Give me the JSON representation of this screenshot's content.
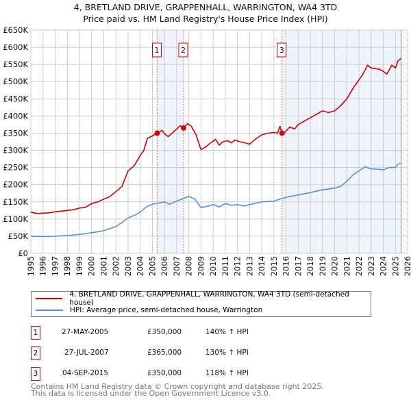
{
  "title_line1": "4, BRETLAND DRIVE, GRAPPENHALL, WARRINGTON, WA4 3TD",
  "title_line2": "Price paid vs. HM Land Registry's House Price Index (HPI)",
  "colors": {
    "property": "#cc0000",
    "hpi": "#5b8fd6",
    "shade": "#eef3fc",
    "grid": "#cccccc",
    "marker_border": "#cc0000"
  },
  "chart_data": {
    "type": "line",
    "title": "Price paid vs. HM Land Registry's House Price Index (HPI)",
    "xlim": [
      1995,
      2026
    ],
    "ylim": [
      0,
      650000
    ],
    "grid": true,
    "x_ticks": [
      "1995",
      "1996",
      "1997",
      "1998",
      "1999",
      "2000",
      "2001",
      "2002",
      "2003",
      "2004",
      "2005",
      "2006",
      "2007",
      "2008",
      "2009",
      "2010",
      "2011",
      "2012",
      "2013",
      "2014",
      "2015",
      "2016",
      "2017",
      "2018",
      "2019",
      "2020",
      "2021",
      "2022",
      "2023",
      "2024",
      "2025",
      "2026"
    ],
    "y_ticks": [
      {
        "v": 0,
        "label": "£0"
      },
      {
        "v": 50000,
        "label": "£50K"
      },
      {
        "v": 100000,
        "label": "£100K"
      },
      {
        "v": 150000,
        "label": "£150K"
      },
      {
        "v": 200000,
        "label": "£200K"
      },
      {
        "v": 250000,
        "label": "£250K"
      },
      {
        "v": 300000,
        "label": "£300K"
      },
      {
        "v": 350000,
        "label": "£350K"
      },
      {
        "v": 400000,
        "label": "£400K"
      },
      {
        "v": 450000,
        "label": "£450K"
      },
      {
        "v": 500000,
        "label": "£500K"
      },
      {
        "v": 550000,
        "label": "£550K"
      },
      {
        "v": 600000,
        "label": "£600K"
      },
      {
        "v": 650000,
        "label": "£650K"
      }
    ],
    "data_end": 2025.47,
    "shaded_ranges": [
      [
        2005.4,
        2007.57
      ],
      [
        2015.67,
        2025.47
      ]
    ],
    "series": [
      {
        "name": "4, BRETLAND DRIVE, GRAPPENHALL, WARRINGTON, WA4 3TD (semi-detached house)",
        "color": "#cc0000",
        "x": [
          1995,
          1995.5,
          1996,
          1996.5,
          1997,
          1997.5,
          1998,
          1998.5,
          1999,
          1999.5,
          2000,
          2000.5,
          2001,
          2001.5,
          2002,
          2002.5,
          2003,
          2003.5,
          2004,
          2004.3,
          2004.6,
          2005,
          2005.4,
          2005.8,
          2006,
          2006.3,
          2006.7,
          2007,
          2007.3,
          2007.57,
          2007.9,
          2008.2,
          2008.6,
          2009,
          2009.4,
          2009.8,
          2010.2,
          2010.5,
          2010.8,
          2011.2,
          2011.5,
          2011.8,
          2012.2,
          2012.6,
          2013,
          2013.5,
          2014,
          2014.5,
          2015,
          2015.3,
          2015.5,
          2015.67,
          2015.9,
          2016.3,
          2016.7,
          2017,
          2017.5,
          2018,
          2018.5,
          2019,
          2019.5,
          2020,
          2020.5,
          2021,
          2021.5,
          2022,
          2022.3,
          2022.7,
          2023,
          2023.3,
          2023.7,
          2024,
          2024.3,
          2024.7,
          2025,
          2025.2,
          2025.47
        ],
        "y": [
          120000,
          116000,
          117000,
          118000,
          121000,
          123000,
          125000,
          127000,
          132000,
          134000,
          145000,
          150000,
          158000,
          165000,
          180000,
          195000,
          240000,
          255000,
          285000,
          300000,
          335000,
          342000,
          350000,
          358000,
          348000,
          340000,
          352000,
          362000,
          372000,
          365000,
          378000,
          370000,
          345000,
          302000,
          310000,
          322000,
          332000,
          315000,
          325000,
          328000,
          322000,
          330000,
          325000,
          322000,
          318000,
          333000,
          345000,
          350000,
          352000,
          350000,
          370000,
          350000,
          352000,
          368000,
          362000,
          375000,
          385000,
          395000,
          405000,
          415000,
          410000,
          415000,
          430000,
          450000,
          480000,
          505000,
          520000,
          548000,
          540000,
          538000,
          536000,
          530000,
          522000,
          548000,
          540000,
          560000,
          568000
        ]
      },
      {
        "name": "HPI: Average price, semi-detached house, Warrington",
        "color": "#5b8fd6",
        "x": [
          1995,
          1996,
          1997,
          1998,
          1999,
          2000,
          2001,
          2002,
          2002.5,
          2003,
          2003.5,
          2004,
          2004.5,
          2005,
          2005.4,
          2006,
          2006.4,
          2007,
          2007.57,
          2008,
          2008.5,
          2009,
          2009.5,
          2010,
          2010.5,
          2011,
          2011.5,
          2012,
          2012.5,
          2013,
          2013.5,
          2014,
          2015,
          2015.67,
          2016,
          2017,
          2018,
          2019,
          2020,
          2020.5,
          2021,
          2021.5,
          2022,
          2022.5,
          2023,
          2023.5,
          2024,
          2024.5,
          2025,
          2025.2,
          2025.47
        ],
        "y": [
          50000,
          49000,
          50000,
          52000,
          55000,
          60000,
          66000,
          78000,
          90000,
          103000,
          110000,
          120000,
          135000,
          143000,
          146000,
          150000,
          143000,
          152000,
          160000,
          166000,
          158000,
          133000,
          137000,
          142000,
          135000,
          145000,
          140000,
          142000,
          138000,
          142000,
          146000,
          150000,
          152000,
          160000,
          163000,
          170000,
          177000,
          185000,
          190000,
          195000,
          210000,
          228000,
          240000,
          252000,
          246000,
          245000,
          243000,
          250000,
          250000,
          260000,
          262000
        ]
      }
    ],
    "annotations": [
      {
        "label": "1",
        "x": 2005.4,
        "y": 350000
      },
      {
        "label": "2",
        "x": 2007.57,
        "y": 365000
      },
      {
        "label": "3",
        "x": 2015.67,
        "y": 350000
      }
    ]
  },
  "legend": [
    {
      "label": "4, BRETLAND DRIVE, GRAPPENHALL, WARRINGTON, WA4 3TD (semi-detached house)",
      "color": "#cc0000"
    },
    {
      "label": "HPI: Average price, semi-detached house, Warrington",
      "color": "#5b8fd6"
    }
  ],
  "transactions": [
    {
      "num": "1",
      "date": "27-MAY-2005",
      "price": "£350,000",
      "hpi": "140% ↑ HPI"
    },
    {
      "num": "2",
      "date": "27-JUL-2007",
      "price": "£365,000",
      "hpi": "130% ↑ HPI"
    },
    {
      "num": "3",
      "date": "04-SEP-2015",
      "price": "£350,000",
      "hpi": "118% ↑ HPI"
    }
  ],
  "footer_line1": "Contains HM Land Registry data © Crown copyright and database right 2025.",
  "footer_line2": "This data is licensed under the Open Government Licence v3.0."
}
